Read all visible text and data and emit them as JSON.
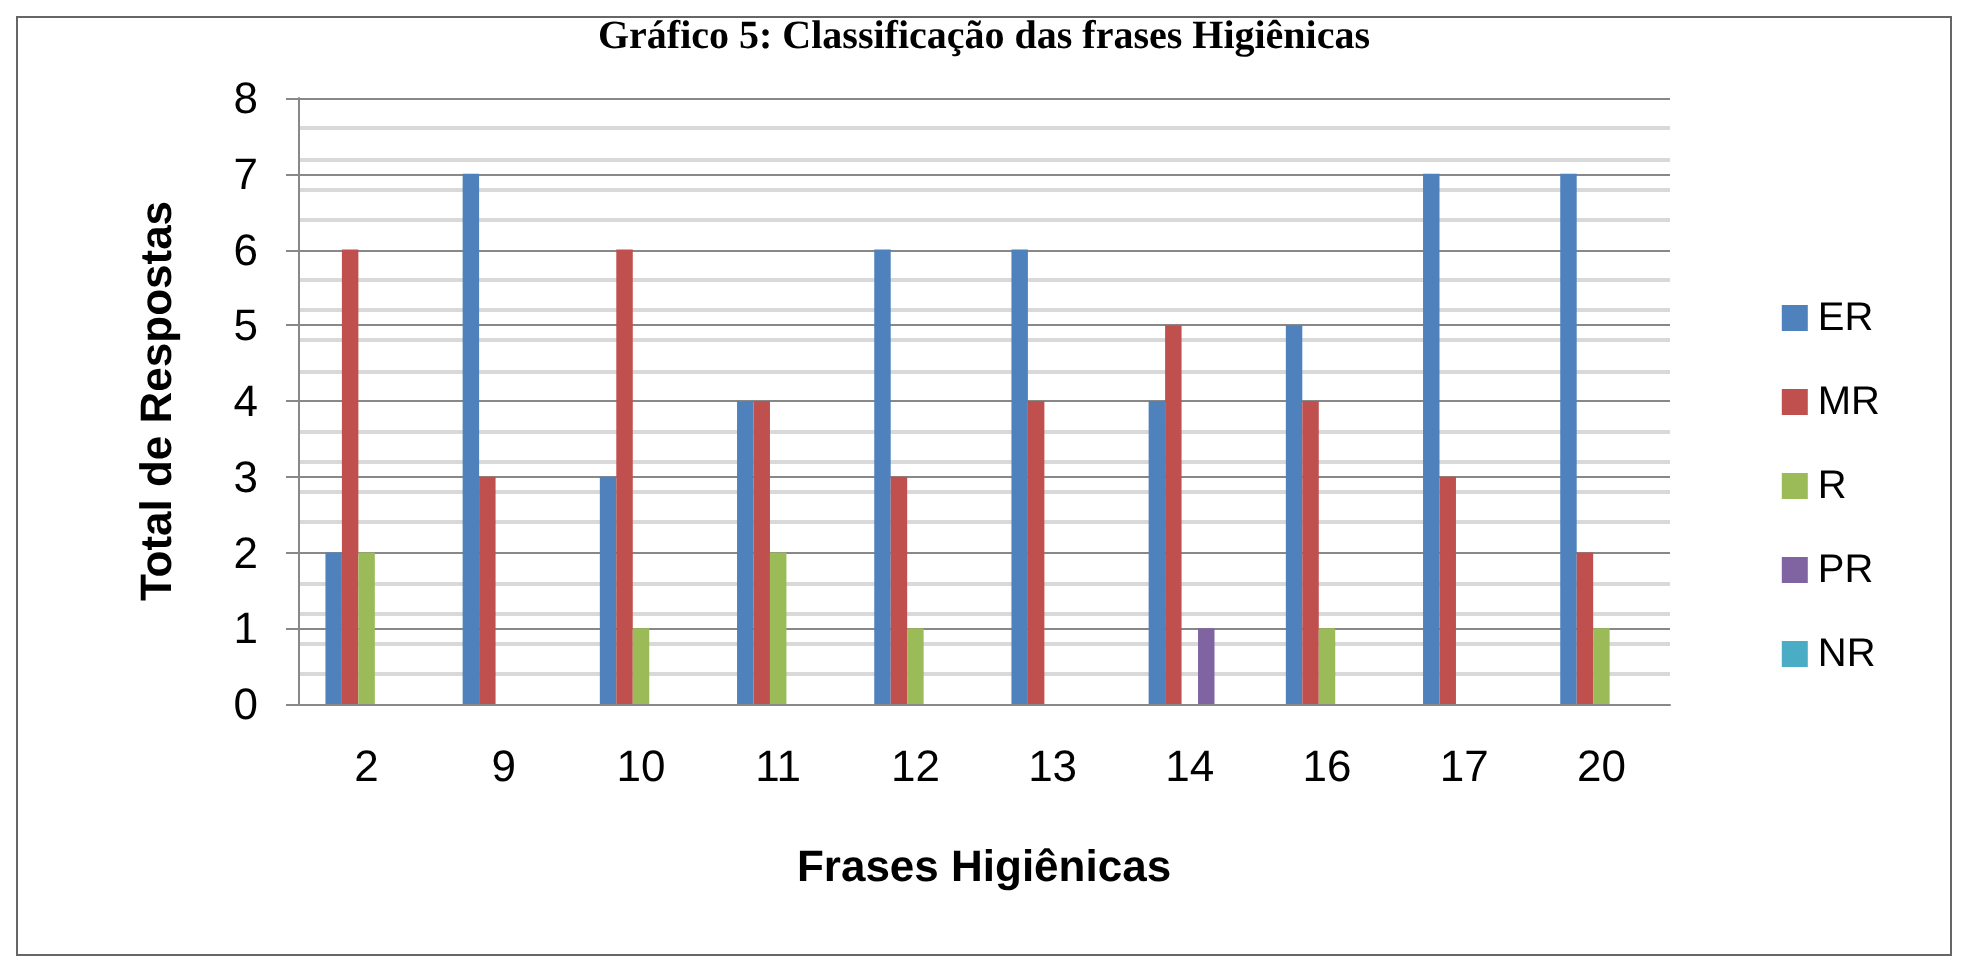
{
  "chart_data": {
    "type": "bar",
    "title": "Gráfico 5: Classificação das frases Higiênicas",
    "xlabel": "Frases Higiênicas",
    "ylabel": "Total de Respostas",
    "categories": [
      "2",
      "9",
      "10",
      "11",
      "12",
      "13",
      "14",
      "16",
      "17",
      "20"
    ],
    "series": [
      {
        "name": "ER",
        "color": "#4f81bd",
        "values": [
          2,
          7,
          3,
          4,
          6,
          6,
          4,
          5,
          7,
          7
        ]
      },
      {
        "name": "MR",
        "color": "#c0504d",
        "values": [
          6,
          3,
          6,
          4,
          3,
          4,
          5,
          4,
          3,
          2
        ]
      },
      {
        "name": "R",
        "color": "#9bbb59",
        "values": [
          2,
          0,
          1,
          2,
          1,
          0,
          0,
          1,
          0,
          1
        ]
      },
      {
        "name": "PR",
        "color": "#8064a2",
        "values": [
          0,
          0,
          0,
          0,
          0,
          0,
          1,
          0,
          0,
          0
        ]
      },
      {
        "name": "NR",
        "color": "#4bacc6",
        "values": [
          0,
          0,
          0,
          0,
          0,
          0,
          0,
          0,
          0,
          0
        ]
      }
    ],
    "ylim": [
      0,
      8
    ],
    "yticks": [
      0,
      1,
      2,
      3,
      4,
      5,
      6,
      7,
      8
    ],
    "grid": "y",
    "legend": "right"
  }
}
